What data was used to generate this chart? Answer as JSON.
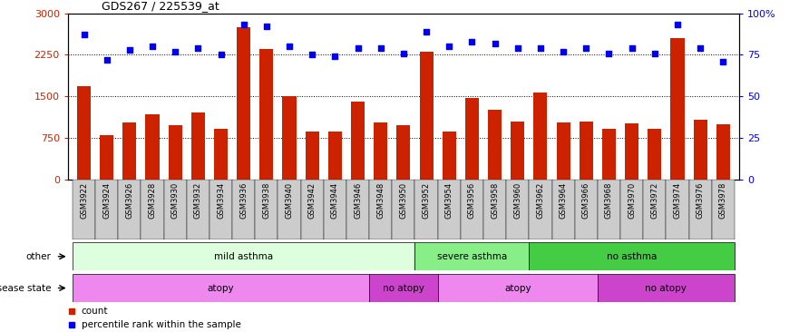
{
  "title": "GDS267 / 225539_at",
  "samples": [
    "GSM3922",
    "GSM3924",
    "GSM3926",
    "GSM3928",
    "GSM3930",
    "GSM3932",
    "GSM3934",
    "GSM3936",
    "GSM3938",
    "GSM3940",
    "GSM3942",
    "GSM3944",
    "GSM3946",
    "GSM3948",
    "GSM3950",
    "GSM3952",
    "GSM3954",
    "GSM3956",
    "GSM3958",
    "GSM3960",
    "GSM3962",
    "GSM3964",
    "GSM3966",
    "GSM3968",
    "GSM3970",
    "GSM3972",
    "GSM3974",
    "GSM3976",
    "GSM3978"
  ],
  "counts": [
    1680,
    800,
    1020,
    1180,
    980,
    1200,
    920,
    2750,
    2350,
    1500,
    870,
    870,
    1410,
    1020,
    980,
    2300,
    870,
    1470,
    1260,
    1050,
    1560,
    1020,
    1050,
    920,
    1010,
    920,
    2550,
    1080,
    1000
  ],
  "percentiles": [
    87,
    72,
    78,
    80,
    77,
    79,
    75,
    93,
    92,
    80,
    75,
    74,
    79,
    79,
    76,
    89,
    80,
    83,
    82,
    79,
    79,
    77,
    79,
    76,
    79,
    76,
    93,
    79,
    71
  ],
  "ylim_left": [
    0,
    3000
  ],
  "ylim_right": [
    0,
    100
  ],
  "yticks_left": [
    0,
    750,
    1500,
    2250,
    3000
  ],
  "yticks_right": [
    0,
    25,
    50,
    75,
    100
  ],
  "bar_color": "#cc2200",
  "dot_color": "#0000ee",
  "annotation_row1": {
    "label": "other",
    "groups": [
      {
        "text": "mild asthma",
        "start": 0,
        "end": 14,
        "color": "#ddffdd"
      },
      {
        "text": "severe asthma",
        "start": 15,
        "end": 19,
        "color": "#88ee88"
      },
      {
        "text": "no asthma",
        "start": 20,
        "end": 28,
        "color": "#44cc44"
      }
    ]
  },
  "annotation_row2": {
    "label": "disease state",
    "groups": [
      {
        "text": "atopy",
        "start": 0,
        "end": 12,
        "color": "#ee88ee"
      },
      {
        "text": "no atopy",
        "start": 13,
        "end": 15,
        "color": "#cc44cc"
      },
      {
        "text": "atopy",
        "start": 16,
        "end": 22,
        "color": "#ee88ee"
      },
      {
        "text": "no atopy",
        "start": 23,
        "end": 28,
        "color": "#cc44cc"
      }
    ]
  },
  "legend": [
    {
      "label": "count",
      "color": "#cc2200"
    },
    {
      "label": "percentile rank within the sample",
      "color": "#0000ee"
    }
  ]
}
